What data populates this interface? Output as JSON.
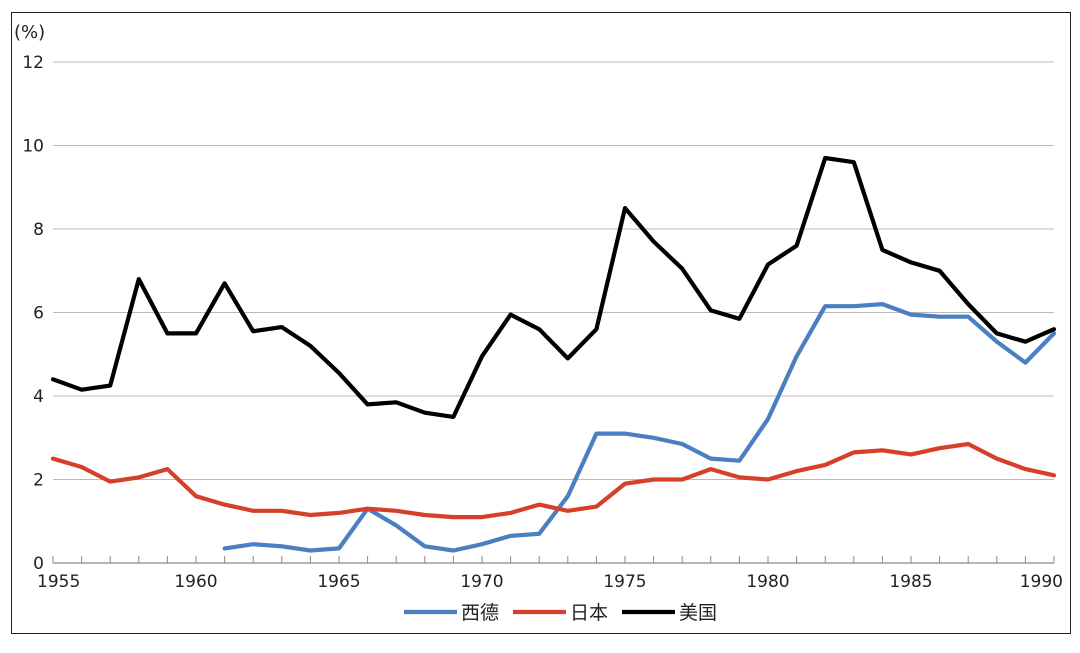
{
  "chart_data": {
    "type": "line",
    "ylabel": "(%)",
    "xlabel": "",
    "xlim": [
      1955,
      1990
    ],
    "ylim": [
      0,
      12
    ],
    "y_ticks": [
      "0",
      "2",
      "4",
      "6",
      "8",
      "10",
      "12"
    ],
    "x_ticks": [
      "1955",
      "1960",
      "1965",
      "1970",
      "1975",
      "1980",
      "1985",
      "1990"
    ],
    "grid": true,
    "legend_position": "bottom",
    "series": [
      {
        "name": "西德",
        "color": "#4a7fc1",
        "x": [
          1961,
          1962,
          1963,
          1964,
          1965,
          1966,
          1967,
          1968,
          1969,
          1970,
          1971,
          1972,
          1973,
          1974,
          1975,
          1976,
          1977,
          1978,
          1979,
          1980,
          1981,
          1982,
          1983,
          1984,
          1985,
          1986,
          1987,
          1988,
          1989,
          1990
        ],
        "values": [
          0.35,
          0.45,
          0.4,
          0.3,
          0.35,
          1.3,
          0.9,
          0.4,
          0.3,
          0.45,
          0.65,
          0.7,
          1.6,
          3.1,
          3.1,
          3.0,
          2.85,
          2.5,
          2.45,
          3.45,
          4.95,
          6.15,
          6.15,
          6.2,
          5.95,
          5.9,
          5.9,
          5.3,
          4.8,
          5.5
        ]
      },
      {
        "name": "日本",
        "color": "#d6402b",
        "x": [
          1955,
          1956,
          1957,
          1958,
          1959,
          1960,
          1961,
          1962,
          1963,
          1964,
          1965,
          1966,
          1967,
          1968,
          1969,
          1970,
          1971,
          1972,
          1973,
          1974,
          1975,
          1976,
          1977,
          1978,
          1979,
          1980,
          1981,
          1982,
          1983,
          1984,
          1985,
          1986,
          1987,
          1988,
          1989,
          1990
        ],
        "values": [
          2.5,
          2.3,
          1.95,
          2.05,
          2.25,
          1.6,
          1.4,
          1.25,
          1.25,
          1.15,
          1.2,
          1.3,
          1.25,
          1.15,
          1.1,
          1.1,
          1.2,
          1.4,
          1.25,
          1.35,
          1.9,
          2.0,
          2.0,
          2.25,
          2.05,
          2.0,
          2.2,
          2.35,
          2.65,
          2.7,
          2.6,
          2.75,
          2.85,
          2.5,
          2.25,
          2.1
        ]
      },
      {
        "name": "美国",
        "color": "#000000",
        "x": [
          1955,
          1956,
          1957,
          1958,
          1959,
          1960,
          1961,
          1962,
          1963,
          1964,
          1965,
          1966,
          1967,
          1968,
          1969,
          1970,
          1971,
          1972,
          1973,
          1974,
          1975,
          1976,
          1977,
          1978,
          1979,
          1980,
          1981,
          1982,
          1983,
          1984,
          1985,
          1986,
          1987,
          1988,
          1989,
          1990
        ],
        "values": [
          4.4,
          4.15,
          4.25,
          6.8,
          5.5,
          5.5,
          6.7,
          5.55,
          5.65,
          5.2,
          4.55,
          3.8,
          3.85,
          3.6,
          3.5,
          4.95,
          5.95,
          5.6,
          4.9,
          5.6,
          8.5,
          7.7,
          7.05,
          6.05,
          5.85,
          7.15,
          7.6,
          9.7,
          9.6,
          7.5,
          7.2,
          7.0,
          6.2,
          5.5,
          5.3,
          5.6
        ]
      }
    ]
  }
}
